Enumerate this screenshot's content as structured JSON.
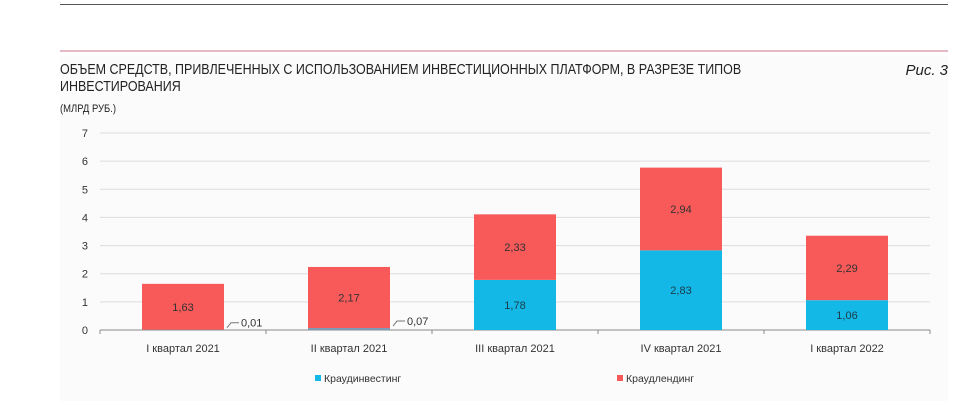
{
  "title": "ОБЪЕМ СРЕДСТВ, ПРИВЛЕЧЕННЫХ С ИСПОЛЬЗОВАНИЕМ ИНВЕСТИЦИОННЫХ ПЛАТФОРМ, В РАЗРЕЗЕ ТИПОВ ИНВЕСТИРОВАНИЯ",
  "figure_label": "Рис. 3",
  "unit": "(МЛРД РУБ.)",
  "chart_data": {
    "type": "bar",
    "stacked": true,
    "title": "ОБЪЕМ СРЕДСТВ, ПРИВЛЕЧЕННЫХ С ИСПОЛЬЗОВАНИЕМ ИНВЕСТИЦИОННЫХ ПЛАТФОРМ, В РАЗРЕЗЕ ТИПОВ ИНВЕСТИРОВАНИЯ",
    "ylabel": "(МЛРД РУБ.)",
    "categories": [
      "I квартал 2021",
      "II квартал 2021",
      "III квартал 2021",
      "IV  квартал 2021",
      "I квартал 2022"
    ],
    "series": [
      {
        "name": "Краудинвестинг",
        "color": "#14b8e6",
        "values": [
          0.01,
          0.07,
          1.78,
          2.83,
          1.06
        ],
        "labels": [
          "0,01",
          "0,07",
          "1,78",
          "2,83",
          "1,06"
        ]
      },
      {
        "name": "Краудлендинг",
        "color": "#f85a5a",
        "values": [
          1.63,
          2.17,
          2.33,
          2.94,
          2.29
        ],
        "labels": [
          "1,63",
          "2,17",
          "2,33",
          "2,94",
          "2,29"
        ]
      }
    ],
    "ylim": [
      0,
      7
    ],
    "yticks": [
      0,
      1,
      2,
      3,
      4,
      5,
      6,
      7
    ],
    "grid": true,
    "legend": "bottom"
  }
}
